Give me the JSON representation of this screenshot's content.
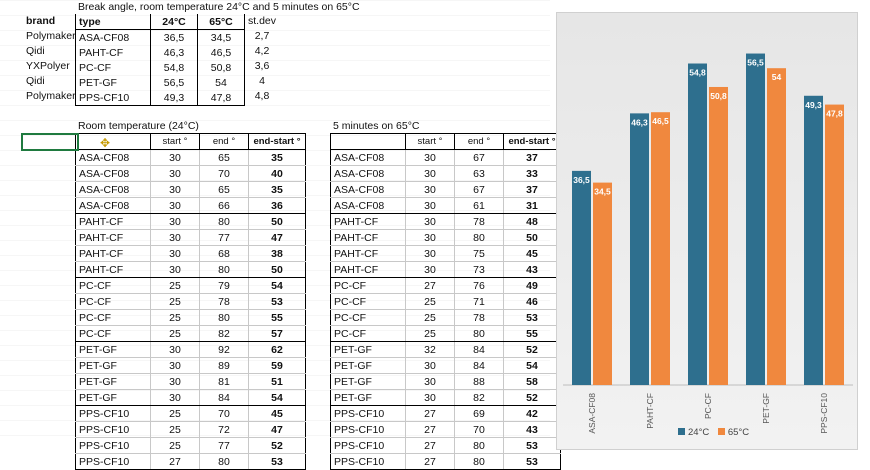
{
  "title": "Break angle, room temperature 24°C and 5 minutes on 65°C",
  "summary": {
    "headers": {
      "brand": "brand",
      "type": "type",
      "t24": "24°C",
      "t65": "65°C",
      "stdev": "st.dev"
    },
    "rows": [
      {
        "brand": "Polymaker",
        "type": "ASA-CF08",
        "t24": "36,5",
        "t65": "34,5",
        "stdev": "2,7"
      },
      {
        "brand": "Qidi",
        "type": "PAHT-CF",
        "t24": "46,3",
        "t65": "46,5",
        "stdev": "4,2"
      },
      {
        "brand": "YXPolyer",
        "type": "PC-CF",
        "t24": "54,8",
        "t65": "50,8",
        "stdev": "3,6"
      },
      {
        "brand": "Qidi",
        "type": "PET-GF",
        "t24": "56,5",
        "t65": "54",
        "stdev": "4"
      },
      {
        "brand": "Polymaker",
        "type": "PPS-CF10",
        "t24": "49,3",
        "t65": "47,8",
        "stdev": "4,8"
      }
    ]
  },
  "room": {
    "label": "Room temperature (24°C)",
    "headers": {
      "start": "start °",
      "end": "end °",
      "diff": "end-start °"
    },
    "rows": [
      [
        "ASA-CF08",
        "30",
        "65",
        "35"
      ],
      [
        "ASA-CF08",
        "30",
        "70",
        "40"
      ],
      [
        "ASA-CF08",
        "30",
        "65",
        "35"
      ],
      [
        "ASA-CF08",
        "30",
        "66",
        "36"
      ],
      [
        "PAHT-CF",
        "30",
        "80",
        "50"
      ],
      [
        "PAHT-CF",
        "30",
        "77",
        "47"
      ],
      [
        "PAHT-CF",
        "30",
        "68",
        "38"
      ],
      [
        "PAHT-CF",
        "30",
        "80",
        "50"
      ],
      [
        "PC-CF",
        "25",
        "79",
        "54"
      ],
      [
        "PC-CF",
        "25",
        "78",
        "53"
      ],
      [
        "PC-CF",
        "25",
        "80",
        "55"
      ],
      [
        "PC-CF",
        "25",
        "82",
        "57"
      ],
      [
        "PET-GF",
        "30",
        "92",
        "62"
      ],
      [
        "PET-GF",
        "30",
        "89",
        "59"
      ],
      [
        "PET-GF",
        "30",
        "81",
        "51"
      ],
      [
        "PET-GF",
        "30",
        "84",
        "54"
      ],
      [
        "PPS-CF10",
        "25",
        "70",
        "45"
      ],
      [
        "PPS-CF10",
        "25",
        "72",
        "47"
      ],
      [
        "PPS-CF10",
        "25",
        "77",
        "52"
      ],
      [
        "PPS-CF10",
        "27",
        "80",
        "53"
      ]
    ]
  },
  "hot": {
    "label": "5 minutes on 65°C",
    "headers": {
      "start": "start °",
      "end": "end °",
      "diff": "end-start °"
    },
    "rows": [
      [
        "ASA-CF08",
        "30",
        "67",
        "37"
      ],
      [
        "ASA-CF08",
        "30",
        "63",
        "33"
      ],
      [
        "ASA-CF08",
        "30",
        "67",
        "37"
      ],
      [
        "ASA-CF08",
        "30",
        "61",
        "31"
      ],
      [
        "PAHT-CF",
        "30",
        "78",
        "48"
      ],
      [
        "PAHT-CF",
        "30",
        "80",
        "50"
      ],
      [
        "PAHT-CF",
        "30",
        "75",
        "45"
      ],
      [
        "PAHT-CF",
        "30",
        "73",
        "43"
      ],
      [
        "PC-CF",
        "27",
        "76",
        "49"
      ],
      [
        "PC-CF",
        "25",
        "71",
        "46"
      ],
      [
        "PC-CF",
        "25",
        "78",
        "53"
      ],
      [
        "PC-CF",
        "25",
        "80",
        "55"
      ],
      [
        "PET-GF",
        "32",
        "84",
        "52"
      ],
      [
        "PET-GF",
        "30",
        "84",
        "54"
      ],
      [
        "PET-GF",
        "30",
        "88",
        "58"
      ],
      [
        "PET-GF",
        "30",
        "82",
        "52"
      ],
      [
        "PPS-CF10",
        "27",
        "69",
        "42"
      ],
      [
        "PPS-CF10",
        "27",
        "70",
        "43"
      ],
      [
        "PPS-CF10",
        "27",
        "80",
        "53"
      ],
      [
        "PPS-CF10",
        "27",
        "80",
        "53"
      ]
    ]
  },
  "chart_data": {
    "type": "bar",
    "categories": [
      "ASA-CF08",
      "PAHT-CF",
      "PC-CF",
      "PET-GF",
      "PPS-CF10"
    ],
    "series": [
      {
        "name": "24°C",
        "values": [
          36.5,
          46.3,
          54.8,
          56.5,
          49.3
        ],
        "labels": [
          "36,5",
          "46,3",
          "54,8",
          "56,5",
          "49,3"
        ],
        "color": "#2e6f8e"
      },
      {
        "name": "65°C",
        "values": [
          34.5,
          46.5,
          50.8,
          54,
          47.8
        ],
        "labels": [
          "34,5",
          "46,5",
          "50,8",
          "54",
          "47,8"
        ],
        "color": "#f0883e"
      }
    ],
    "ylim": [
      0,
      60
    ],
    "legend": "bottom",
    "grid": false
  }
}
